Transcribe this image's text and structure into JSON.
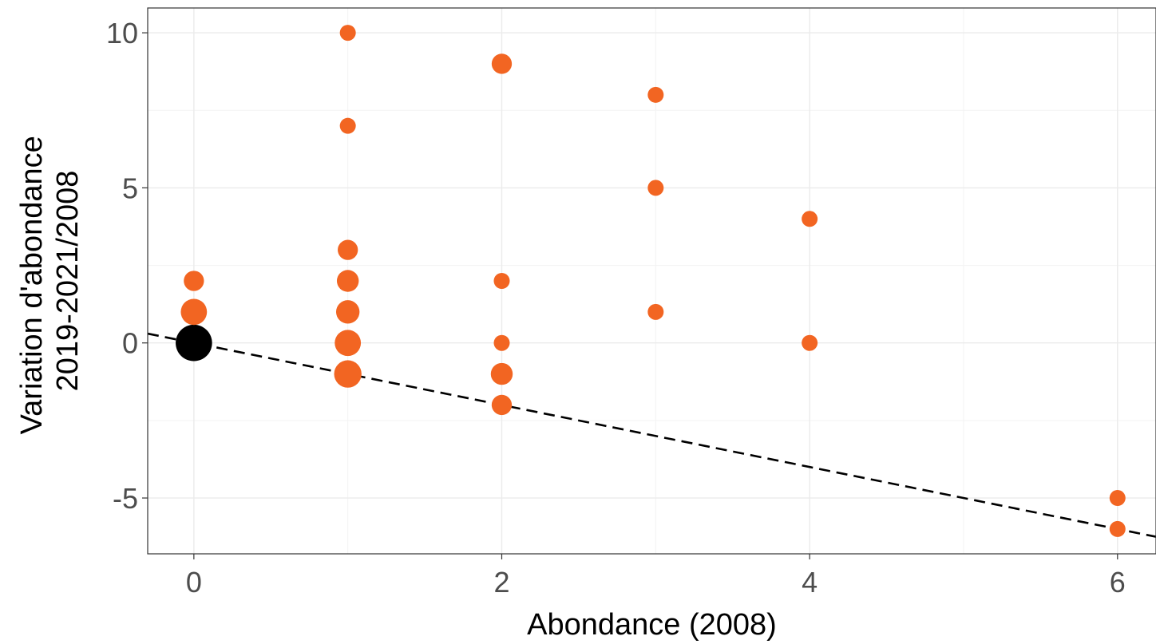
{
  "chart_data": {
    "type": "scatter",
    "title": "",
    "xlabel": "Abondance (2008)",
    "ylabel_lines": [
      "Variation d'abondance",
      "2019-2021/2008"
    ],
    "xlim": [
      -0.3,
      6.25
    ],
    "ylim": [
      -6.8,
      10.8
    ],
    "x_ticks": [
      0,
      2,
      4,
      6
    ],
    "x_tick_labels": [
      "0",
      "2",
      "4",
      "6"
    ],
    "y_ticks": [
      -5,
      0,
      5,
      10
    ],
    "y_tick_labels": [
      "-5",
      "0",
      "5",
      "10"
    ],
    "grid": true,
    "reference_line": {
      "slope": -1,
      "intercept": 0,
      "style": "dashed",
      "color": "#000000"
    },
    "point_color": "#f26522",
    "highlight_color": "#000000",
    "points": [
      {
        "x": 0,
        "y": 0,
        "size": 9,
        "color": "#000000"
      },
      {
        "x": 0,
        "y": 1,
        "size": 4,
        "color": "#f26522"
      },
      {
        "x": 0,
        "y": 2,
        "size": 2,
        "color": "#f26522"
      },
      {
        "x": 1,
        "y": 10,
        "size": 1,
        "color": "#f26522"
      },
      {
        "x": 1,
        "y": 7,
        "size": 1,
        "color": "#f26522"
      },
      {
        "x": 1,
        "y": 3,
        "size": 2,
        "color": "#f26522"
      },
      {
        "x": 1,
        "y": 2,
        "size": 2.5,
        "color": "#f26522"
      },
      {
        "x": 1,
        "y": 1,
        "size": 3,
        "color": "#f26522"
      },
      {
        "x": 1,
        "y": 0,
        "size": 4,
        "color": "#f26522"
      },
      {
        "x": 1,
        "y": -1,
        "size": 4.5,
        "color": "#f26522"
      },
      {
        "x": 2,
        "y": 9,
        "size": 2,
        "color": "#f26522"
      },
      {
        "x": 2,
        "y": 2,
        "size": 1,
        "color": "#f26522"
      },
      {
        "x": 2,
        "y": 0,
        "size": 1,
        "color": "#f26522"
      },
      {
        "x": 2,
        "y": -1,
        "size": 2.5,
        "color": "#f26522"
      },
      {
        "x": 2,
        "y": -2,
        "size": 2,
        "color": "#f26522"
      },
      {
        "x": 3,
        "y": 8,
        "size": 1,
        "color": "#f26522"
      },
      {
        "x": 3,
        "y": 5,
        "size": 1,
        "color": "#f26522"
      },
      {
        "x": 3,
        "y": 1,
        "size": 1,
        "color": "#f26522"
      },
      {
        "x": 4,
        "y": 4,
        "size": 1,
        "color": "#f26522"
      },
      {
        "x": 4,
        "y": 0,
        "size": 1,
        "color": "#f26522"
      },
      {
        "x": 6,
        "y": -5,
        "size": 1,
        "color": "#f26522"
      },
      {
        "x": 6,
        "y": -6,
        "size": 1,
        "color": "#f26522"
      }
    ]
  }
}
